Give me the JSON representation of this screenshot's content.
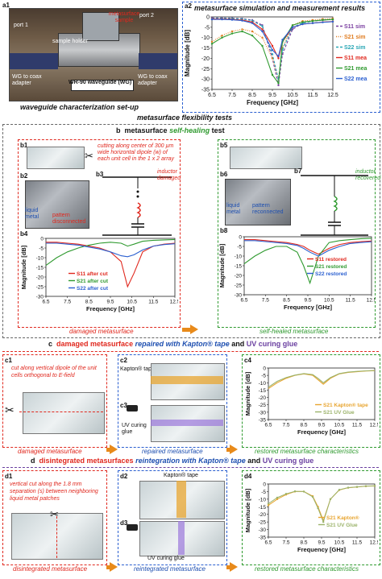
{
  "a1": {
    "label": "a1",
    "port1": "port 1",
    "port2": "port 2",
    "sample_holder": "sample holder",
    "metasurface_sample": "metasurface sample",
    "wg_coax_left": "WG to coax adapter",
    "wg_coax_right": "WG to coax adapter",
    "waveguide": "WR-90 waveguide (WG)",
    "caption": "waveguide characterization set-up"
  },
  "a2": {
    "label": "a2",
    "title": "metasurface simulation and measurement results",
    "legend": [
      "S11 sim",
      "S21 sim",
      "S22 sim",
      "S11 mea",
      "S21 mea",
      "S22 mea"
    ]
  },
  "flex_title": "metasurface flexibility tests",
  "b": {
    "label": "b",
    "title_prefix": "metasurface",
    "title_em": "self-healing",
    "title_suffix": "test",
    "b1": "b1",
    "b2": "b2",
    "b3": "b3",
    "b4": "b4",
    "b5": "b5",
    "b6": "b6",
    "b7": "b7",
    "b8": "b8",
    "cut_note": "cutting along center of 300 µm wide horizontal dipole (w) of each unit cell in the 1 x 2 array",
    "liquid_metal": "liquid metal",
    "pattern_disconnected": "pattern disconnected",
    "inductor_damaged": "inductor damaged",
    "pattern_reconnected": "pattern reconnected",
    "inductor_recovered": "inductor recovered",
    "legend_left": [
      "S11 after cut",
      "S21 after cut",
      "S22 after cut"
    ],
    "legend_right": [
      "S11 restored",
      "S21 restored",
      "S22 restored"
    ],
    "cap_left": "damaged metasurface",
    "cap_right": "self-healed metasurface"
  },
  "c": {
    "label": "c",
    "t1": "damaged metasurface",
    "t2": "repaired with Kapton® tape",
    "t3": "and",
    "t4": "UV curing glue",
    "c1": "c1",
    "c2": "c2",
    "c3": "c3",
    "c4": "c4",
    "c1_note": "cut along vertical dipole of the unit cells orthogonal to E-field",
    "kapton": "Kapton® tape",
    "uv": "UV curing glue",
    "cap1": "damaged metasurface",
    "cap2": "repaired metasurface",
    "cap3": "restored metasurface characteristics",
    "legend": [
      "S21 Kapton® tape",
      "S21 UV Glue"
    ]
  },
  "d": {
    "label": "d",
    "t1": "disintegrated metasurfaces",
    "t2": "reintegration with Kapton® tape",
    "t3": "and",
    "t4": "UV curing glue",
    "d1": "d1",
    "d2": "d2",
    "d3": "d3",
    "d4": "d4",
    "d1_note": "vertical cut along the 1.8 mm separation (s) between neighboring liquid metal patches",
    "kapton": "Kapton® tape",
    "uv": "UV curing glue",
    "cap1": "disintegrated metasurface",
    "cap2": "reintegrated metasurface",
    "cap3": "restored metasurface characteristics",
    "legend": [
      "S21 Kapton®",
      "S21 UV Glue"
    ]
  },
  "axes": {
    "ylabel": "Magnitude [dB]",
    "xlabel": "Frequency [GHz]",
    "xlabel_short": "Frequency [GHz]"
  },
  "colors": {
    "s11_sim": "#7a3fa0",
    "s21_sim": "#e07b1e",
    "s22_sim": "#2aa7b5",
    "s11_mea": "#e0281e",
    "s21_mea": "#2f9a2f",
    "s22_mea": "#2a5fd0",
    "kapton": "#e8a530",
    "uv": "#9bb36a"
  },
  "chart_data": [
    {
      "id": "a2",
      "type": "line",
      "x": [
        6.5,
        7,
        7.5,
        8,
        8.5,
        9,
        9.5,
        9.8,
        10,
        10.5,
        11,
        11.5,
        12,
        12.5
      ],
      "ylim": [
        -35,
        0
      ],
      "xticks": [
        6.5,
        7.5,
        8.5,
        9.5,
        10.5,
        11.5,
        12.5
      ],
      "yticks": [
        0,
        -5,
        -10,
        -15,
        -20,
        -25,
        -30,
        -35
      ],
      "series": [
        {
          "name": "S11 sim",
          "style": "dash",
          "values": [
            -0.5,
            -0.5,
            -0.6,
            -0.8,
            -1.5,
            -4,
            -20,
            -33,
            -18,
            -6,
            -3,
            -2,
            -1.5,
            -1.2
          ]
        },
        {
          "name": "S21 sim",
          "style": "dot",
          "values": [
            -12,
            -9,
            -7,
            -6,
            -7,
            -10,
            -20,
            -30,
            -15,
            -4,
            -2,
            -1.5,
            -1,
            -0.8
          ]
        },
        {
          "name": "S22 sim",
          "style": "dash",
          "values": [
            -0.8,
            -0.7,
            -0.8,
            -1,
            -1.8,
            -4.5,
            -18,
            -30,
            -16,
            -5,
            -3,
            -2,
            -1.5,
            -1.2
          ]
        },
        {
          "name": "S11 mea",
          "style": "solid",
          "values": [
            -1,
            -1,
            -1.2,
            -1.5,
            -2.5,
            -6,
            -14,
            -20,
            -12,
            -5,
            -3.5,
            -3,
            -2.5,
            -2.2
          ]
        },
        {
          "name": "S21 mea",
          "style": "solid",
          "values": [
            -13,
            -10,
            -8,
            -7,
            -9,
            -14,
            -28,
            -32,
            -12,
            -4,
            -2.5,
            -2,
            -1.5,
            -1.2
          ]
        },
        {
          "name": "S22 mea",
          "style": "solid",
          "values": [
            -1.2,
            -1.2,
            -1.4,
            -1.8,
            -3,
            -7,
            -16,
            -19,
            -11,
            -5,
            -3.5,
            -3,
            -2.6,
            -2.3
          ]
        }
      ]
    },
    {
      "id": "b4",
      "type": "line",
      "x": [
        6.5,
        7,
        7.5,
        8,
        8.5,
        9,
        9.5,
        10,
        10.3,
        10.6,
        11,
        11.5,
        12,
        12.5
      ],
      "ylim": [
        -30,
        0
      ],
      "xticks": [
        6.5,
        7.5,
        8.5,
        9.5,
        10.5,
        11.5,
        12.5
      ],
      "yticks": [
        0,
        -5,
        -10,
        -15,
        -20,
        -25,
        -30
      ],
      "series": [
        {
          "name": "S11 after cut",
          "values": [
            -2,
            -2,
            -2.5,
            -3,
            -4,
            -5,
            -7,
            -12,
            -25,
            -18,
            -7,
            -4,
            -3,
            -2.5
          ]
        },
        {
          "name": "S21 after cut",
          "values": [
            -14,
            -10,
            -7,
            -5,
            -3.5,
            -2.5,
            -2,
            -2.5,
            -4,
            -3,
            -1.5,
            -1,
            -0.8,
            -0.6
          ]
        },
        {
          "name": "S22 after cut",
          "values": [
            -2.5,
            -2.5,
            -3,
            -3.5,
            -4.5,
            -5.5,
            -7,
            -9,
            -9.5,
            -8.5,
            -6,
            -4,
            -3.2,
            -2.8
          ]
        }
      ]
    },
    {
      "id": "b8",
      "type": "line",
      "x": [
        6.5,
        7,
        7.5,
        8,
        8.5,
        9,
        9.3,
        9.6,
        10,
        10.5,
        11,
        11.5,
        12,
        12.5
      ],
      "ylim": [
        -30,
        0
      ],
      "xticks": [
        6.5,
        7.5,
        8.5,
        9.5,
        10.5,
        11.5,
        12.5
      ],
      "yticks": [
        0,
        -5,
        -10,
        -15,
        -20,
        -25,
        -30
      ],
      "series": [
        {
          "name": "S11 restored",
          "values": [
            -1.5,
            -1.5,
            -2,
            -2.5,
            -3,
            -4,
            -5,
            -7,
            -9,
            -6,
            -4,
            -3,
            -2.5,
            -2.2
          ]
        },
        {
          "name": "S21 restored",
          "values": [
            -14,
            -10,
            -7,
            -5,
            -5,
            -8,
            -15,
            -24,
            -10,
            -3,
            -2,
            -1.5,
            -1,
            -0.8
          ]
        },
        {
          "name": "S22 restored",
          "values": [
            -2,
            -2,
            -2.5,
            -3,
            -3.5,
            -4.5,
            -6,
            -8,
            -10,
            -7,
            -5,
            -3.5,
            -3,
            -2.6
          ]
        }
      ]
    },
    {
      "id": "c4",
      "type": "line",
      "x": [
        6.5,
        7,
        7.5,
        8,
        8.5,
        9,
        9.3,
        9.6,
        10,
        10.5,
        11,
        11.5,
        12,
        12.5
      ],
      "ylim": [
        -35,
        0
      ],
      "xticks": [
        6.5,
        7.5,
        8.5,
        9.5,
        10.5,
        11.5,
        12.5
      ],
      "yticks": [
        0,
        -5,
        -10,
        -15,
        -20,
        -25,
        -30,
        -35
      ],
      "series": [
        {
          "name": "S21 Kapton® tape",
          "values": [
            -14,
            -10,
            -7,
            -5,
            -4,
            -5,
            -8,
            -11,
            -7,
            -4,
            -3,
            -2.5,
            -2,
            -1.8
          ]
        },
        {
          "name": "S21 UV Glue",
          "values": [
            -13,
            -9,
            -6.5,
            -4.8,
            -3.8,
            -4.5,
            -7,
            -10,
            -6.5,
            -3.8,
            -2.8,
            -2.3,
            -1.9,
            -1.7
          ]
        }
      ]
    },
    {
      "id": "d4",
      "type": "line",
      "x": [
        6.5,
        7,
        7.5,
        8,
        8.5,
        9,
        9.3,
        9.6,
        10,
        10.5,
        11,
        11.5,
        12,
        12.5
      ],
      "ylim": [
        -35,
        0
      ],
      "xticks": [
        6.5,
        7.5,
        8.5,
        9.5,
        10.5,
        11.5,
        12.5
      ],
      "yticks": [
        0,
        -5,
        -10,
        -15,
        -20,
        -25,
        -30,
        -35
      ],
      "series": [
        {
          "name": "S21 Kapton®",
          "values": [
            -14,
            -10,
            -7,
            -5,
            -5,
            -8,
            -15,
            -24,
            -10,
            -4,
            -2.5,
            -2,
            -1.5,
            -1.3
          ]
        },
        {
          "name": "S21 UV Glue",
          "values": [
            -13,
            -9,
            -6.5,
            -4.8,
            -5,
            -8.5,
            -16,
            -25,
            -10,
            -3.8,
            -2.4,
            -1.9,
            -1.4,
            -1.2
          ]
        }
      ]
    }
  ]
}
